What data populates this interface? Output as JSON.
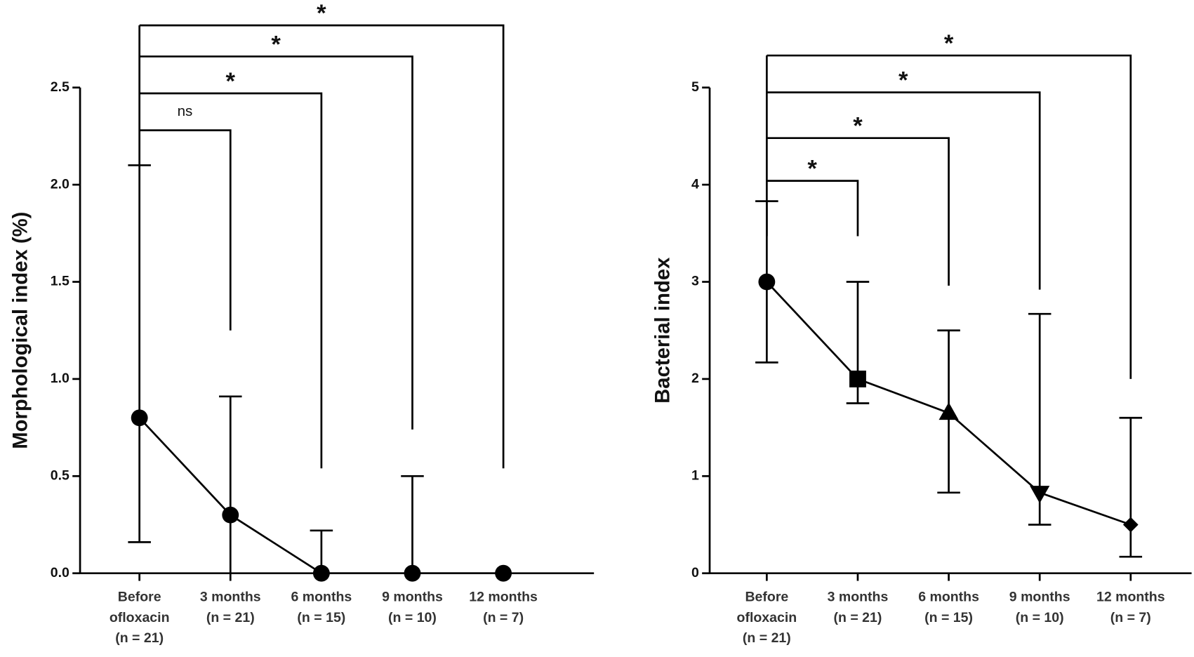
{
  "chart_data": [
    {
      "type": "line",
      "y_label": "Morphological index (%)",
      "color": "#000000",
      "categories": [
        [
          "Before",
          "ofloxacin",
          "(n = 21)"
        ],
        [
          "3 months",
          "(n = 21)"
        ],
        [
          "6 months",
          "(n = 15)"
        ],
        [
          "9 months",
          "(n = 10)"
        ],
        [
          "12 months",
          "(n = 7)"
        ]
      ],
      "values": [
        0.8,
        0.3,
        0,
        0,
        0
      ],
      "lower": [
        0.16,
        0,
        0,
        0,
        null
      ],
      "upper": [
        2.1,
        0.91,
        0.22,
        0.5,
        null
      ],
      "markers": [
        "circle",
        "circle",
        "circle",
        "circle",
        "circle"
      ],
      "ylim": [
        0,
        2.5
      ],
      "yticks": [
        {
          "value": 0,
          "label": "0.0"
        },
        0.5,
        {
          "value": 1,
          "label": "1.0"
        },
        1.5,
        {
          "value": 2,
          "label": "2.0"
        },
        2.5
      ],
      "bracket_base": 2.1,
      "comparisons": [
        {
          "label": "ns",
          "y": 2.28,
          "end": 1.25
        },
        {
          "label": "*",
          "y": 2.47,
          "end": 0.54
        },
        {
          "label": "*",
          "y": 2.66,
          "end": 0.74
        },
        {
          "label": "*",
          "y": 2.82,
          "end": 0.54
        }
      ]
    },
    {
      "type": "line",
      "y_label": "Bacterial index",
      "color": "#000000",
      "categories": [
        [
          "Before",
          "ofloxacin",
          "(n = 21)"
        ],
        [
          "3 months",
          "(n = 21)"
        ],
        [
          "6 months",
          "(n = 15)"
        ],
        [
          "9 months",
          "(n = 10)"
        ],
        [
          "12 months",
          "(n = 7)"
        ]
      ],
      "values": [
        3,
        2,
        1.65,
        0.83,
        0.5
      ],
      "lower": [
        2.17,
        1.75,
        0.83,
        0.5,
        0.17
      ],
      "upper": [
        3.83,
        3,
        2.5,
        2.67,
        1.6
      ],
      "markers": [
        "circle",
        "square",
        "triangle",
        "triangle-down",
        "diamond"
      ],
      "ylim": [
        0,
        5
      ],
      "yticks": [
        0,
        1,
        2,
        3,
        4,
        5
      ],
      "bracket_base": 3.47,
      "comparisons": [
        {
          "label": "*",
          "y": 4.04,
          "end": 3.47
        },
        {
          "label": "*",
          "y": 4.48,
          "end": 2.96
        },
        {
          "label": "*",
          "y": 4.95,
          "end": 2.92
        },
        {
          "label": "*",
          "y": 5.33,
          "end": 2.0
        }
      ]
    }
  ]
}
